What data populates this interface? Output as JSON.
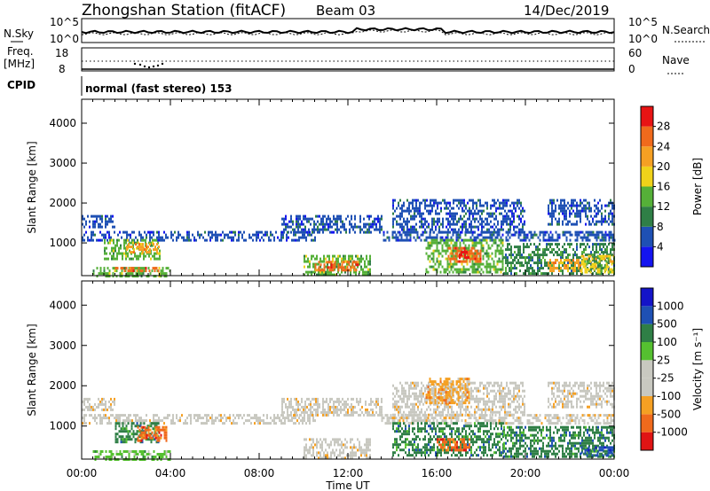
{
  "header": {
    "station": "Zhongshan Station (fitACF)",
    "beam": "Beam 03",
    "date": "14/Dec/2019"
  },
  "noise_panel": {
    "left_label": "N.Sky",
    "right_label": "N.Search",
    "tick_top": "10^5",
    "tick_bottom": "10^0",
    "right_tick_top": "10^5",
    "right_tick_bottom": "10^0"
  },
  "freq_panel": {
    "left_label_1": "Freq.",
    "left_label_2": "[MHz]",
    "right_label": "Nave",
    "tick_top": "18",
    "tick_bottom": "8",
    "right_tick_top": "60",
    "right_tick_bottom": "0"
  },
  "cpid": {
    "label": "CPID",
    "value": "normal (fast stereo) 153"
  },
  "x_axis": {
    "label": "Time UT",
    "ticks": [
      "00:00",
      "04:00",
      "08:00",
      "12:00",
      "16:00",
      "20:00",
      "00:00"
    ]
  },
  "chart_data": [
    {
      "type": "heatmap",
      "name": "power",
      "ylabel": "Slant Range [km]",
      "yticks": [
        "1000",
        "2000",
        "3000",
        "4000"
      ],
      "ylim": [
        180,
        4600
      ],
      "xlim_hours": [
        0,
        24
      ],
      "colorbar_label": "Power [dB]",
      "colorbar_ticks": [
        "4",
        "8",
        "12",
        "16",
        "20",
        "24",
        "28"
      ],
      "colors": [
        "#1414f0",
        "#1e50b4",
        "#2f7f46",
        "#55b038",
        "#f0d21a",
        "#f5a023",
        "#f06a1c",
        "#e81414"
      ],
      "regions": [
        {
          "x": [
            0.0,
            1.5
          ],
          "y": [
            1400,
            1700
          ],
          "level": 1
        },
        {
          "x": [
            0.0,
            10.5
          ],
          "y": [
            1100,
            1300
          ],
          "level": 1
        },
        {
          "x": [
            0.5,
            4.0
          ],
          "y": [
            200,
            400
          ],
          "level": 3
        },
        {
          "x": [
            1.5,
            3.5
          ],
          "y": [
            300,
            400
          ],
          "level": 6
        },
        {
          "x": [
            1.0,
            3.5
          ],
          "y": [
            600,
            1100
          ],
          "level": 3
        },
        {
          "x": [
            2.0,
            3.5
          ],
          "y": [
            750,
            1000
          ],
          "level": 5
        },
        {
          "x": [
            9.0,
            13.5
          ],
          "y": [
            1300,
            1700
          ],
          "level": 1
        },
        {
          "x": [
            10.0,
            13.0
          ],
          "y": [
            200,
            700
          ],
          "level": 3
        },
        {
          "x": [
            10.5,
            12.5
          ],
          "y": [
            300,
            550
          ],
          "level": 6
        },
        {
          "x": [
            13.5,
            24.0
          ],
          "y": [
            1100,
            1300
          ],
          "level": 1
        },
        {
          "x": [
            14.0,
            20.0
          ],
          "y": [
            1300,
            2100
          ],
          "level": 1
        },
        {
          "x": [
            15.5,
            19.0
          ],
          "y": [
            300,
            1100
          ],
          "level": 3
        },
        {
          "x": [
            16.5,
            18.0
          ],
          "y": [
            550,
            900
          ],
          "level": 6
        },
        {
          "x": [
            17.0,
            17.5
          ],
          "y": [
            650,
            800
          ],
          "level": 7
        },
        {
          "x": [
            19.0,
            24.0
          ],
          "y": [
            250,
            1000
          ],
          "level": 2
        },
        {
          "x": [
            21.0,
            22.5
          ],
          "y": [
            300,
            600
          ],
          "level": 5
        },
        {
          "x": [
            21.0,
            24.0
          ],
          "y": [
            1500,
            2100
          ],
          "level": 1
        },
        {
          "x": [
            22.5,
            24.0
          ],
          "y": [
            250,
            700
          ],
          "level": 4
        }
      ]
    },
    {
      "type": "heatmap",
      "name": "velocity",
      "ylabel": "Slant Range [km]",
      "yticks": [
        "1000",
        "2000",
        "3000",
        "4000"
      ],
      "ylim": [
        180,
        4600
      ],
      "xlim_hours": [
        0,
        24
      ],
      "colorbar_label": "Velocity [m s⁻¹]",
      "colorbar_ticks": [
        "-1000",
        "-500",
        "-100",
        "-25",
        "25",
        "100",
        "500",
        "1000"
      ],
      "colors": [
        "#e01414",
        "#f06a1c",
        "#f5a023",
        "#c8c8c0",
        "#c8c8c0",
        "#55c030",
        "#2f7f46",
        "#1e50b4",
        "#1414c8"
      ],
      "regions": [
        {
          "x": [
            0.0,
            10.5
          ],
          "y": [
            1100,
            1300
          ],
          "level": 3
        },
        {
          "x": [
            0.0,
            1.5
          ],
          "y": [
            1400,
            1700
          ],
          "level": 3
        },
        {
          "x": [
            0.5,
            4.0
          ],
          "y": [
            200,
            400
          ],
          "level": 5
        },
        {
          "x": [
            1.5,
            3.5
          ],
          "y": [
            600,
            1100
          ],
          "level": 6
        },
        {
          "x": [
            2.5,
            3.8
          ],
          "y": [
            650,
            1000
          ],
          "level": 1
        },
        {
          "x": [
            9.0,
            13.5
          ],
          "y": [
            1300,
            1700
          ],
          "level": 3
        },
        {
          "x": [
            10.0,
            13.0
          ],
          "y": [
            200,
            700
          ],
          "level": 3
        },
        {
          "x": [
            13.5,
            24.0
          ],
          "y": [
            1100,
            1300
          ],
          "level": 3
        },
        {
          "x": [
            14.0,
            20.0
          ],
          "y": [
            1300,
            2100
          ],
          "level": 3
        },
        {
          "x": [
            15.5,
            17.5
          ],
          "y": [
            1600,
            2200
          ],
          "level": 2
        },
        {
          "x": [
            14.0,
            19.0
          ],
          "y": [
            300,
            1100
          ],
          "level": 6
        },
        {
          "x": [
            16.0,
            17.5
          ],
          "y": [
            400,
            700
          ],
          "level": 1
        },
        {
          "x": [
            19.0,
            24.0
          ],
          "y": [
            250,
            1000
          ],
          "level": 6
        },
        {
          "x": [
            22.5,
            24.0
          ],
          "y": [
            250,
            500
          ],
          "level": 7
        },
        {
          "x": [
            21.0,
            24.0
          ],
          "y": [
            1500,
            2100
          ],
          "level": 3
        }
      ]
    }
  ]
}
